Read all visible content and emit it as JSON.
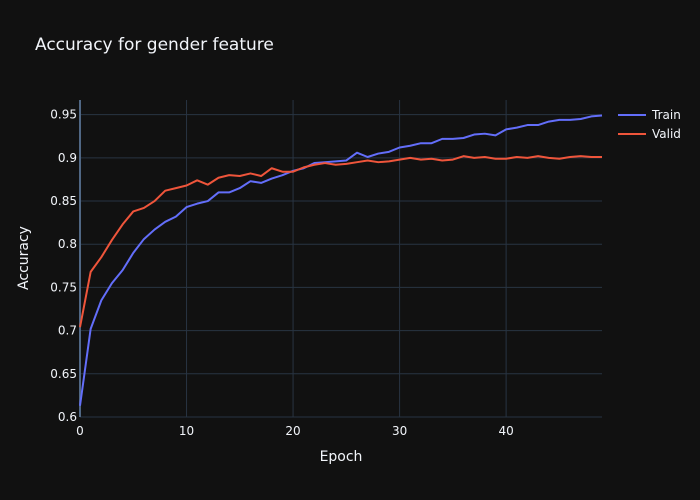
{
  "chart_data": {
    "type": "line",
    "title": "Accuracy for gender feature",
    "xlabel": "Epoch",
    "ylabel": "Accuracy",
    "xlim": [
      0,
      49
    ],
    "ylim": [
      0.6,
      0.967
    ],
    "x_ticks": [
      0,
      10,
      20,
      30,
      40
    ],
    "y_ticks": [
      0.6,
      0.65,
      0.7,
      0.75,
      0.8,
      0.85,
      0.9,
      0.95
    ],
    "y_tick_labels": [
      "0.6",
      "0.65",
      "0.7",
      "0.75",
      "0.8",
      "0.85",
      "0.9",
      "0.95"
    ],
    "grid": true,
    "legend_position": "top-right",
    "x": [
      0,
      1,
      2,
      3,
      4,
      5,
      6,
      7,
      8,
      9,
      10,
      11,
      12,
      13,
      14,
      15,
      16,
      17,
      18,
      19,
      20,
      21,
      22,
      23,
      24,
      25,
      26,
      27,
      28,
      29,
      30,
      31,
      32,
      33,
      34,
      35,
      36,
      37,
      38,
      39,
      40,
      41,
      42,
      43,
      44,
      45,
      46,
      47,
      48,
      49
    ],
    "series": [
      {
        "name": "Train",
        "color": "#636efa",
        "values": [
          0.613,
          0.702,
          0.735,
          0.755,
          0.77,
          0.79,
          0.806,
          0.817,
          0.826,
          0.832,
          0.843,
          0.847,
          0.85,
          0.86,
          0.86,
          0.865,
          0.873,
          0.871,
          0.876,
          0.88,
          0.885,
          0.888,
          0.894,
          0.895,
          0.896,
          0.897,
          0.906,
          0.901,
          0.905,
          0.907,
          0.912,
          0.914,
          0.917,
          0.917,
          0.922,
          0.922,
          0.923,
          0.927,
          0.928,
          0.926,
          0.933,
          0.935,
          0.938,
          0.938,
          0.942,
          0.944,
          0.944,
          0.945,
          0.948,
          0.949
        ]
      },
      {
        "name": "Valid",
        "color": "#ef553b",
        "values": [
          0.704,
          0.768,
          0.785,
          0.805,
          0.823,
          0.838,
          0.842,
          0.85,
          0.862,
          0.865,
          0.868,
          0.874,
          0.869,
          0.877,
          0.88,
          0.879,
          0.882,
          0.879,
          0.888,
          0.884,
          0.884,
          0.889,
          0.892,
          0.894,
          0.892,
          0.893,
          0.895,
          0.897,
          0.895,
          0.896,
          0.898,
          0.9,
          0.898,
          0.899,
          0.897,
          0.898,
          0.902,
          0.9,
          0.901,
          0.899,
          0.899,
          0.901,
          0.9,
          0.902,
          0.9,
          0.899,
          0.901,
          0.902,
          0.901,
          0.901
        ]
      }
    ]
  },
  "colors": {
    "background": "#111111",
    "grid": "#283442",
    "zeroline": "#506784",
    "text": "#f2f5fa"
  }
}
